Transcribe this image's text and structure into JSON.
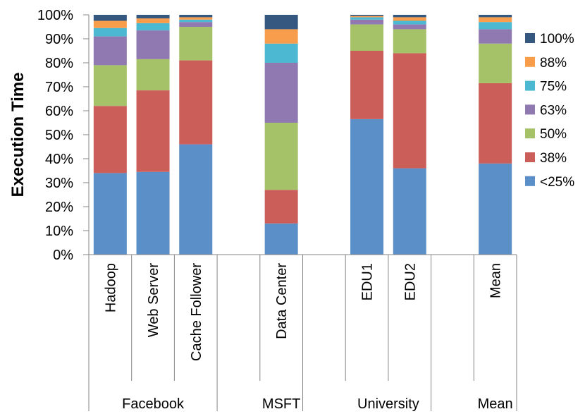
{
  "chart_data": {
    "type": "bar",
    "stacked": true,
    "title": "",
    "ylabel": "Execution Time",
    "xlabel": "",
    "ylim": [
      0,
      100
    ],
    "yticks": [
      "0%",
      "10%",
      "20%",
      "30%",
      "40%",
      "50%",
      "60%",
      "70%",
      "80%",
      "90%",
      "100%"
    ],
    "categories": [
      "Hadoop",
      "Web Server",
      "Cache Follower",
      "Data Center",
      "EDU1",
      "EDU2",
      "Mean"
    ],
    "groups": [
      {
        "name": "Facebook",
        "members": [
          "Hadoop",
          "Web Server",
          "Cache Follower"
        ]
      },
      {
        "name": "MSFT",
        "members": [
          "Data Center"
        ]
      },
      {
        "name": "University",
        "members": [
          "EDU1",
          "EDU2"
        ]
      },
      {
        "name": "Mean",
        "members": [
          "Mean"
        ]
      }
    ],
    "series": [
      {
        "name": "<25%",
        "color": "#5B8FC7",
        "values": [
          34,
          34.5,
          46,
          13,
          56.5,
          36,
          38
        ]
      },
      {
        "name": "38%",
        "color": "#CC5E5A",
        "values": [
          28,
          34,
          35,
          14,
          28.5,
          48,
          33.5
        ]
      },
      {
        "name": "50%",
        "color": "#A6C268",
        "values": [
          17,
          13,
          14,
          28,
          11,
          10,
          16.5
        ]
      },
      {
        "name": "63%",
        "color": "#8F79B0",
        "values": [
          12,
          12,
          2,
          25,
          2,
          2,
          6
        ]
      },
      {
        "name": "75%",
        "color": "#4DB8D1",
        "values": [
          3.5,
          3,
          1,
          8,
          1,
          1.5,
          3
        ]
      },
      {
        "name": "88%",
        "color": "#F79D4C",
        "values": [
          3,
          2,
          1,
          6,
          0.5,
          1.5,
          2
        ]
      },
      {
        "name": "100%",
        "color": "#34587F",
        "values": [
          2.5,
          1.5,
          1,
          6,
          0.5,
          1,
          1
        ]
      }
    ],
    "legend_position": "right",
    "grid": false
  }
}
